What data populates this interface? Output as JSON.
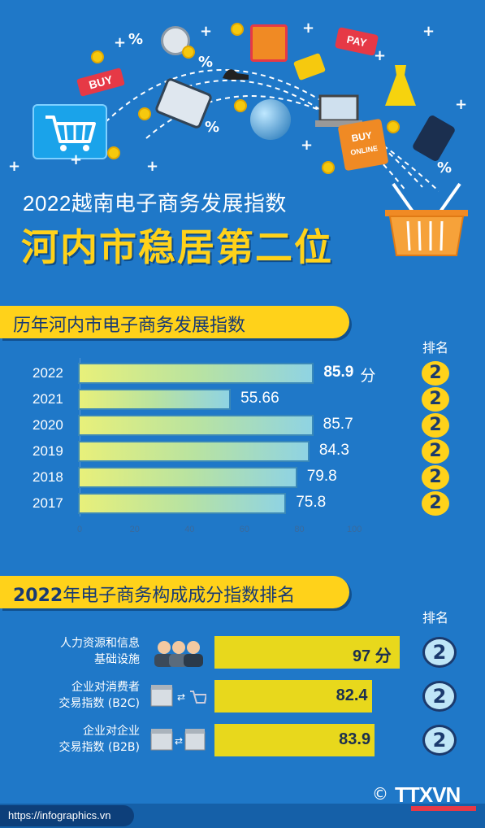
{
  "header": {
    "title": "2022越南电子商务发展指数",
    "subtitle": "河内市稳居第二位",
    "decor_labels": {
      "buy": "BUY",
      "pay": "PAY",
      "buy_online_1": "BUY",
      "buy_online_2": "ONLINE"
    }
  },
  "section1": {
    "title": "历年河内市电子商务发展指数",
    "rank_header": "排名"
  },
  "chart_data": {
    "type": "bar",
    "categories": [
      "2022",
      "2021",
      "2020",
      "2019",
      "2018",
      "2017"
    ],
    "values": [
      85.9,
      55.66,
      85.7,
      84.3,
      79.8,
      75.8
    ],
    "value_labels": [
      "85.9",
      "55.66",
      "85.7",
      "84.3",
      "79.8",
      "75.8"
    ],
    "unit_first": "分",
    "ranks": [
      "2",
      "2",
      "2",
      "2",
      "2",
      "2"
    ],
    "xlim": [
      0,
      100
    ],
    "ticks": [
      "0",
      "20",
      "40",
      "60",
      "80",
      "100"
    ],
    "orientation": "horizontal"
  },
  "section2": {
    "title_prefix": "2022",
    "title_rest": "年电子商务构成成分指数排名",
    "rank_header": "排名",
    "items": [
      {
        "label_line1": "人力资源和信息",
        "label_line2": "基础设施",
        "value": "97",
        "value_num": 97,
        "unit": "分",
        "rank": "2",
        "icon": "people-icon"
      },
      {
        "label_line1": "企业对消费者",
        "label_line2": "交易指数 (B2C)",
        "value": "82.4",
        "value_num": 82.4,
        "unit": "",
        "rank": "2",
        "icon": "store-to-cart-icon"
      },
      {
        "label_line1": "企业对企业",
        "label_line2": "交易指数 (B2B)",
        "value": "83.9",
        "value_num": 83.9,
        "unit": "",
        "rank": "2",
        "icon": "store-to-store-icon"
      }
    ]
  },
  "footer": {
    "url": "https://infographics.vn",
    "copyright": "©",
    "logo": "TTXVN"
  }
}
